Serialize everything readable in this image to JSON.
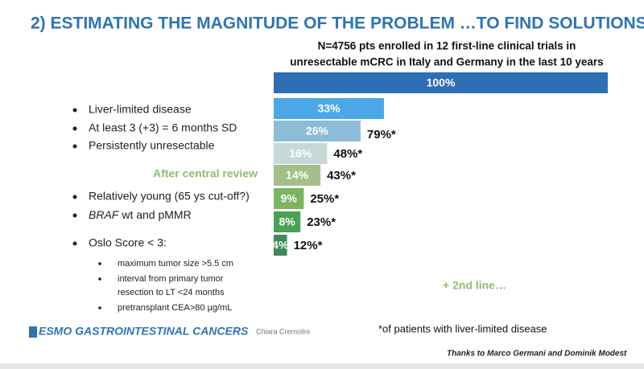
{
  "title": "2) ESTIMATING THE MAGNITUDE OF THE PROBLEM …TO FIND SOLUTIONS",
  "chart_data": {
    "type": "bar",
    "orientation": "horizontal",
    "title": [
      "N=4756 pts enrolled in 12 first-line clinical trials in",
      "unresectable mCRC in Italy and Germany in the last 10 years"
    ],
    "values": [
      100,
      33,
      26,
      16,
      14,
      9,
      8,
      4
    ],
    "value_labels": [
      "100%",
      "33%",
      "26%",
      "16%",
      "14%",
      "9%",
      "8%",
      "4%"
    ],
    "colors": [
      "#2f6db5",
      "#4aa8e6",
      "#8dbcd9",
      "#c5d8d6",
      "#a4bf89",
      "#7bb55d",
      "#4ba257",
      "#3d8a5a"
    ],
    "annotations": [
      null,
      null,
      "79%*",
      "48%*",
      "43%*",
      "25%*",
      "23%*",
      "12%*"
    ],
    "xlim": [
      0,
      100
    ]
  },
  "bullets": [
    "Liver-limited disease",
    "At least 3 (+3) = 6 months SD",
    "Persistently unresectable",
    "Relatively young (65 ys cut-off?)",
    [
      "BRAF",
      "wt and pMMR"
    ],
    "Oslo Score < 3:"
  ],
  "sub_bullets": [
    "maximum tumor size >5.5 cm",
    [
      "interval from primary tumor",
      "resection to LT <24 months"
    ],
    "pretransplant CEA>80 µg/mL"
  ],
  "review_label": "After central review",
  "next_step": "+ 2nd line…",
  "footnote": "*of patients with liver-limited disease",
  "footer": {
    "congress": "ESMO GASTROINTESTINAL CANCERS",
    "speaker": "Chiara Cremolini",
    "thanks": "Thanks to Marco Germani and Dominik Modest"
  }
}
